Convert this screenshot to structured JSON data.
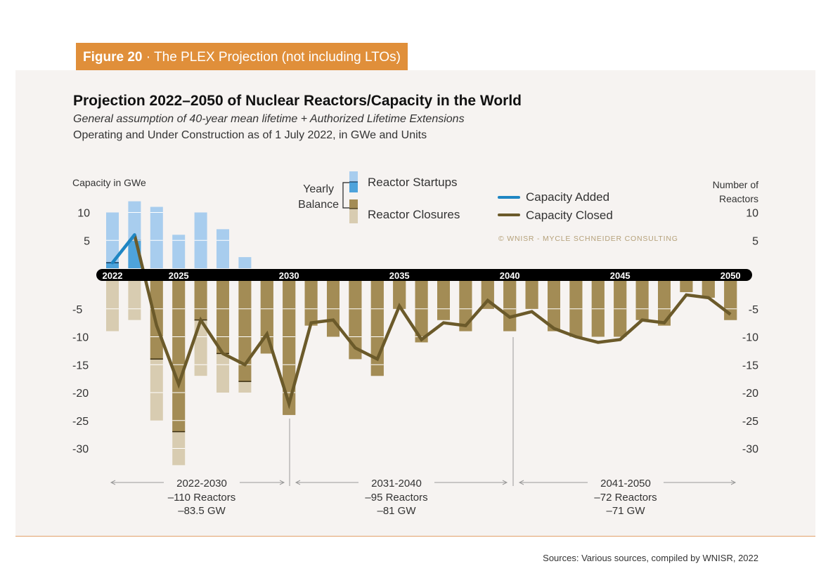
{
  "figure_label": {
    "bold": "Figure 20",
    "rest": " · The PLEX Projection (not including LTOs)"
  },
  "colors": {
    "tab": "#e08f3a",
    "startups_light": "#a8cdee",
    "startups_dark": "#4ea3db",
    "closures_dark": "#a38c55",
    "closures_light": "#d8ccb1",
    "line_added": "#1f86c3",
    "line_closed": "#6b5a2a",
    "band": "#000000"
  },
  "source": "Sources: Various sources, compiled by WNISR, 2022",
  "chart_data": {
    "type": "bar",
    "title": "Projection 2022–2050 of Nuclear Reactors/Capacity in the World",
    "subtitle1": "General assumption of 40-year mean lifetime + Authorized Lifetime Extensions",
    "subtitle2": "Operating and Under Construction as of 1 July 2022, in GWe and Units",
    "ylabel_left": "Capacity in GWe",
    "ylabel_right_line1": "Number of",
    "ylabel_right_line2": "Reactors",
    "yticks_positive": [
      10,
      5
    ],
    "yticks_negative": [
      -5,
      -10,
      -15,
      -20,
      -25,
      -30
    ],
    "ylim": [
      -33,
      12
    ],
    "x_tick_labels": [
      "2022",
      "2025",
      "2030",
      "2035",
      "2040",
      "2045",
      "2050"
    ],
    "years": [
      2022,
      2023,
      2024,
      2025,
      2026,
      2027,
      2028,
      2029,
      2030,
      2031,
      2032,
      2033,
      2034,
      2035,
      2036,
      2037,
      2038,
      2039,
      2040,
      2041,
      2042,
      2043,
      2044,
      2045,
      2046,
      2047,
      2048,
      2049,
      2050
    ],
    "series": [
      {
        "name": "Reactor Startups",
        "values": [
          10,
          12,
          11,
          6,
          10,
          7,
          2,
          0,
          0,
          0,
          0,
          0,
          0,
          0,
          0,
          0,
          0,
          0,
          0,
          0,
          0,
          0,
          0,
          0,
          0,
          0,
          0,
          0,
          0
        ]
      },
      {
        "name": "Reactor Closures",
        "values": [
          -9,
          -7,
          -25,
          -33,
          -17,
          -20,
          -20,
          -13,
          -24,
          -8,
          -10,
          -14,
          -17,
          -5,
          -11,
          -7,
          -9,
          -5,
          -9,
          -5,
          -9,
          -10,
          -10,
          -10,
          -7,
          -8,
          -2,
          -3,
          -7
        ]
      },
      {
        "name": "Yearly Balance",
        "values": [
          1,
          5,
          -14,
          -27,
          -7,
          -13,
          -18,
          -13,
          -24,
          -8,
          -10,
          -14,
          -17,
          -5,
          -11,
          -7,
          -9,
          -5,
          -9,
          -5,
          -9,
          -10,
          -10,
          -10,
          -7,
          -8,
          -2,
          -3,
          -7
        ]
      },
      {
        "name": "Capacity Added",
        "values": [
          1,
          6
        ]
      },
      {
        "name": "Capacity Closed",
        "values": [
          null,
          6,
          -8,
          -18.5,
          -7,
          -13,
          -15,
          -9.5,
          -22,
          -7.5,
          -7,
          -12,
          -14,
          -4.5,
          -10.5,
          -7.5,
          -8,
          -3.5,
          -6.5,
          -5.5,
          -8.5,
          -10,
          -11,
          -10.5,
          -7,
          -7.5,
          -2.5,
          -3,
          -6
        ]
      }
    ],
    "legend": {
      "yearly": "Yearly",
      "balance": "Balance",
      "startups": "Reactor Startups",
      "closures": "Reactor Closures",
      "added": "Capacity Added",
      "closed": "Capacity Closed"
    },
    "copyright": "© WNISR - Mycle Schneider Consulting",
    "periods": [
      {
        "range": "2022-2030",
        "reactors": "–110 Reactors",
        "gw": "–83.5 GW"
      },
      {
        "range": "2031-2040",
        "reactors": "–95 Reactors",
        "gw": "–81 GW"
      },
      {
        "range": "2041-2050",
        "reactors": "–72 Reactors",
        "gw": "–71 GW"
      }
    ]
  }
}
